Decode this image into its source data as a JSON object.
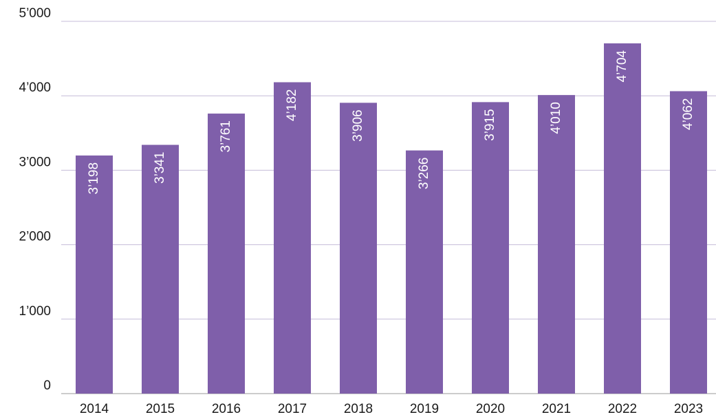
{
  "chart_data": {
    "type": "bar",
    "categories": [
      "2014",
      "2015",
      "2016",
      "2017",
      "2018",
      "2019",
      "2020",
      "2021",
      "2022",
      "2023"
    ],
    "values": [
      3198,
      3341,
      3761,
      4182,
      3906,
      3266,
      3915,
      4010,
      4704,
      4062
    ],
    "value_labels": [
      "3’198",
      "3’341",
      "3’761",
      "4’182",
      "3’906",
      "3’266",
      "3’915",
      "4’010",
      "4’704",
      "4’062"
    ],
    "color": "#7f5faa",
    "ylim": [
      0,
      5000
    ],
    "yticks": [
      0,
      {
        "value": 1000,
        "label": "1’000"
      },
      {
        "value": 2000,
        "label": "2’000"
      },
      {
        "value": 3000,
        "label": "3’000"
      },
      {
        "value": 4000,
        "label": "4’000"
      },
      {
        "value": 5000,
        "label": "5’000"
      }
    ],
    "grid": true
  }
}
